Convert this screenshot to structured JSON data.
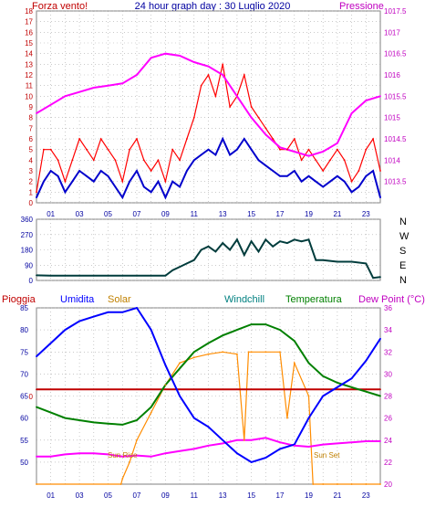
{
  "header": {
    "left": "Forza vento!",
    "center": "24 hour graph day : 30 Luglio 2020",
    "right": "Pressione"
  },
  "direction_labels": [
    "N",
    "W",
    "S",
    "E",
    "N"
  ],
  "bottom_header": {
    "pioggia": "Pioggia",
    "umidita": "Umidita",
    "solar": "Solar",
    "windchill": "Windchill",
    "temperatura": "Temperatura",
    "dewpoint": "Dew Point (°C)"
  },
  "annotations": {
    "sunrise": "Sun Rise",
    "sunset": "Sun Set"
  },
  "colors": {
    "wind": "#ff0000",
    "wind_avg": "#0000cc",
    "pressure": "#ff00ff",
    "direction": "#003c3c",
    "humidity": "#0000ff",
    "solar": "#ff8c00",
    "temperature": "#008000",
    "rain": "#c00000",
    "dewpoint": "#ff00ff",
    "label_orange": "#c08000",
    "label_teal": "#008080",
    "grid": "#aaaaaa",
    "axis_red": "#c00000",
    "axis_blue": "#0000a0",
    "axis_magenta": "#c000c0"
  },
  "chart_data": [
    {
      "type": "line",
      "title": "24 hour graph day : 30 Luglio 2020",
      "xlabel": "",
      "x_tick_labels": [
        "01",
        "03",
        "05",
        "07",
        "09",
        "11",
        "13",
        "15",
        "17",
        "19",
        "21",
        "23"
      ],
      "xlim": [
        0,
        24
      ],
      "grid": true,
      "left_axis": {
        "label": "Forza vento!",
        "ylim": [
          0,
          18
        ],
        "ticks": [
          "0",
          "1",
          "2",
          "3",
          "4",
          "5",
          "6",
          "7",
          "8",
          "9",
          "10",
          "11",
          "12",
          "13",
          "14",
          "15",
          "16",
          "17",
          "18"
        ]
      },
      "right_axis": {
        "label": "Pressione",
        "ylim": [
          1013.0,
          1017.5
        ],
        "ticks": [
          "1013.5",
          "1014",
          "1014.5",
          "1015",
          "1015.5",
          "1016",
          "1016.5",
          "1017",
          "1017.5"
        ]
      },
      "series": [
        {
          "axis": "left",
          "x": [
            0,
            0.5,
            1,
            1.5,
            2,
            2.5,
            3,
            3.5,
            4,
            4.5,
            5,
            5.5,
            6,
            6.5,
            7,
            7.5,
            8,
            8.5,
            9,
            9.5,
            10,
            10.5,
            11,
            11.5,
            12,
            12.5,
            13,
            13.5,
            14,
            14.5,
            15,
            15.5,
            16,
            16.5,
            17,
            17.5,
            18,
            18.5,
            19,
            19.5,
            20,
            20.5,
            21,
            21.5,
            22,
            22.5,
            23,
            23.5,
            24
          ],
          "values": [
            1,
            5,
            5,
            4,
            2,
            4,
            6,
            5,
            4,
            6,
            5,
            4,
            2,
            5,
            6,
            4,
            3,
            4,
            2,
            5,
            4,
            6,
            8,
            11,
            12,
            10,
            13,
            9,
            10,
            12,
            9,
            8,
            7,
            6,
            5,
            5,
            6,
            4,
            5,
            4,
            3,
            4,
            5,
            4,
            2,
            3,
            5,
            6,
            3
          ]
        },
        {
          "axis": "left",
          "x": [
            0,
            0.5,
            1,
            1.5,
            2,
            2.5,
            3,
            3.5,
            4,
            4.5,
            5,
            5.5,
            6,
            6.5,
            7,
            7.5,
            8,
            8.5,
            9,
            9.5,
            10,
            10.5,
            11,
            11.5,
            12,
            12.5,
            13,
            13.5,
            14,
            14.5,
            15,
            15.5,
            16,
            16.5,
            17,
            17.5,
            18,
            18.5,
            19,
            19.5,
            20,
            20.5,
            21,
            21.5,
            22,
            22.5,
            23,
            23.5,
            24
          ],
          "values": [
            0.5,
            2,
            3,
            2.5,
            1,
            2,
            3,
            2.5,
            2,
            3,
            2.5,
            1.5,
            0.5,
            2,
            3,
            1.5,
            1,
            2,
            0.5,
            2,
            1.5,
            3,
            4,
            4.5,
            5,
            4.5,
            6,
            4.5,
            5,
            6,
            5,
            4,
            3.5,
            3,
            2.5,
            2.5,
            3,
            2,
            2.5,
            2,
            1.5,
            2,
            2.5,
            2,
            1,
            1.5,
            2.5,
            3,
            0.5
          ]
        },
        {
          "axis": "right",
          "x": [
            0,
            1,
            2,
            3,
            4,
            5,
            6,
            7,
            8,
            9,
            10,
            11,
            12,
            13,
            14,
            15,
            16,
            17,
            18,
            19,
            20,
            21,
            22,
            23,
            24
          ],
          "values": [
            1015.1,
            1015.3,
            1015.5,
            1015.6,
            1015.7,
            1015.75,
            1015.8,
            1016.0,
            1016.4,
            1016.5,
            1016.45,
            1016.3,
            1016.2,
            1016.0,
            1015.5,
            1015.0,
            1014.6,
            1014.3,
            1014.2,
            1014.1,
            1014.2,
            1014.4,
            1015.1,
            1015.4,
            1015.5
          ]
        }
      ]
    },
    {
      "type": "line",
      "xlim": [
        0,
        24
      ],
      "ylim": [
        0,
        360
      ],
      "y_tick_labels": [
        "0",
        "90",
        "180",
        "270",
        "360"
      ],
      "grid": true,
      "series": [
        {
          "x": [
            0,
            1,
            2,
            3,
            4,
            5,
            6,
            7,
            8,
            9,
            9.5,
            10,
            10.5,
            11,
            11.5,
            12,
            12.5,
            13,
            13.5,
            14,
            14.5,
            15,
            15.5,
            16,
            16.5,
            17,
            17.5,
            18,
            18.5,
            19,
            19.5,
            20,
            21,
            22,
            23,
            23.5,
            24
          ],
          "values": [
            30,
            28,
            28,
            28,
            28,
            28,
            28,
            28,
            28,
            28,
            60,
            80,
            100,
            120,
            180,
            200,
            170,
            220,
            180,
            240,
            150,
            230,
            170,
            240,
            200,
            230,
            220,
            240,
            230,
            240,
            120,
            120,
            110,
            110,
            100,
            15,
            20
          ]
        }
      ]
    },
    {
      "type": "line",
      "xlim": [
        0,
        24
      ],
      "left_axis": {
        "label": "Umidita",
        "ylim": [
          45,
          85
        ],
        "ticks": [
          "50",
          "55",
          "60",
          "65",
          "70",
          "75",
          "80",
          "85"
        ]
      },
      "right_axis": {
        "label": "Dew Point (°C)",
        "ylim": [
          20,
          36
        ],
        "ticks": [
          "20",
          "22",
          "24",
          "26",
          "28",
          "30",
          "32",
          "34",
          "36"
        ]
      },
      "extra_labels": [
        "0"
      ],
      "grid": true,
      "series": [
        {
          "name": "Umidita",
          "axis": "left",
          "x": [
            0,
            1,
            2,
            3,
            4,
            5,
            6,
            7,
            8,
            9,
            10,
            11,
            12,
            13,
            14,
            15,
            16,
            17,
            18,
            19,
            20,
            21,
            22,
            23,
            24
          ],
          "values": [
            74,
            77,
            80,
            82,
            83,
            84,
            84,
            85,
            80,
            72,
            65,
            60,
            58,
            55,
            52,
            50,
            51,
            53,
            54,
            60,
            65,
            67,
            69,
            73,
            78
          ]
        },
        {
          "name": "Temperatura",
          "axis": "right",
          "x": [
            0,
            1,
            2,
            3,
            4,
            5,
            6,
            7,
            8,
            9,
            10,
            11,
            12,
            13,
            14,
            15,
            16,
            17,
            18,
            19,
            20,
            21,
            22,
            23,
            24
          ],
          "values": [
            27,
            26.5,
            26,
            25.8,
            25.6,
            25.5,
            25.4,
            25.8,
            27,
            29,
            30.5,
            32,
            32.8,
            33.5,
            34,
            34.5,
            34.5,
            34,
            33,
            31,
            29.8,
            29.2,
            28.8,
            28.4,
            28
          ]
        },
        {
          "name": "Dew Point (°C)",
          "axis": "right",
          "x": [
            0,
            1,
            2,
            3,
            4,
            5,
            6,
            7,
            8,
            9,
            10,
            11,
            12,
            13,
            14,
            15,
            16,
            17,
            18,
            19,
            20,
            21,
            22,
            23,
            24
          ],
          "values": [
            22.5,
            22.5,
            22.7,
            22.8,
            22.8,
            22.7,
            22.5,
            22.6,
            22.5,
            22.8,
            23,
            23.2,
            23.5,
            23.7,
            24,
            24,
            24.2,
            23.8,
            23.5,
            23.4,
            23.6,
            23.7,
            23.8,
            23.9,
            23.9
          ]
        },
        {
          "name": "Solar",
          "axis": "right",
          "x": [
            0,
            5.9,
            6,
            6.5,
            7,
            8,
            9,
            10,
            11,
            12,
            13,
            14,
            14.5,
            14.8,
            15,
            16,
            17,
            17.5,
            18,
            19,
            19.3,
            20,
            21,
            22,
            23,
            24
          ],
          "values": [
            20,
            20,
            20.5,
            22,
            24,
            26.5,
            29,
            31,
            31.5,
            31.8,
            32,
            31.8,
            24,
            32,
            32,
            32,
            32,
            26,
            31,
            28,
            20,
            20,
            20,
            20,
            20,
            20
          ]
        },
        {
          "name": "Pioggia",
          "axis": "left",
          "x": [
            0,
            24
          ],
          "values": [
            66.5,
            66.5
          ]
        }
      ]
    }
  ]
}
